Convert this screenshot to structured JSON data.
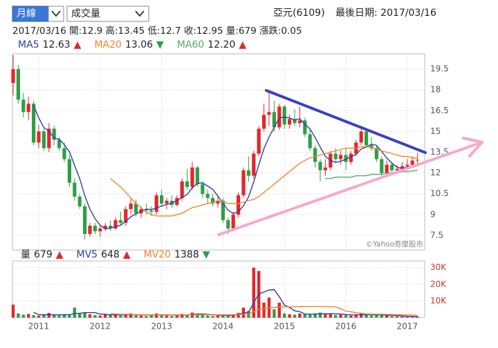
{
  "header": {
    "period": "月線",
    "indicator": "成交量",
    "stock": "亞元(6109)",
    "last_date": "最後日期: 2017/03/16",
    "info": "2017/03/16 開:12.9 高:13.45 低:12.7 收:12.95 量:679 漲跌:0.05"
  },
  "chart_data": {
    "type": "candlestick",
    "watermark": "©Yahoo奇摩股市",
    "categories": [
      null,
      null,
      null,
      null,
      null,
      "2011",
      null,
      null,
      null,
      null,
      null,
      null,
      null,
      null,
      null,
      null,
      null,
      "2012",
      null,
      null,
      null,
      null,
      null,
      null,
      null,
      null,
      null,
      null,
      null,
      "2013",
      null,
      null,
      null,
      null,
      null,
      null,
      null,
      null,
      null,
      null,
      null,
      "2014",
      null,
      null,
      null,
      null,
      null,
      null,
      null,
      null,
      null,
      null,
      null,
      "2015",
      null,
      null,
      null,
      null,
      null,
      null,
      null,
      null,
      null,
      null,
      null,
      "2016",
      null,
      null,
      null,
      null,
      null,
      null,
      null,
      null,
      null,
      null,
      null,
      "2017",
      null,
      null
    ],
    "open": [
      18.5,
      19.5,
      17.3,
      16.4,
      17,
      14.2,
      15,
      13.8,
      15.2,
      14.4,
      13.8,
      13,
      11.3,
      10.3,
      9.6,
      7.6,
      8.2,
      7.8,
      8,
      8.2,
      8,
      8.6,
      8.4,
      9.4,
      9.8,
      9.1,
      9.4,
      9.3,
      9.2,
      10.4,
      9.8,
      10,
      9.7,
      10.2,
      11.4,
      11,
      12.4,
      11.2,
      10.5,
      10.2,
      9.8,
      10,
      8.6,
      8,
      9,
      10.4,
      12.2,
      11.8,
      13.4,
      15.2,
      16.2,
      16.4,
      15.3,
      16.8,
      15.5,
      15.9,
      15.6,
      15.8,
      14.8,
      13.8,
      12.8,
      12.2,
      12.4,
      13.4,
      13,
      13.3,
      12.8,
      13.4,
      14.2,
      15,
      14,
      13.8,
      13,
      12,
      12.6,
      12.2,
      12.3,
      12.5,
      12.6,
      12.9
    ],
    "high": [
      20.5,
      19.8,
      17.8,
      17.5,
      17.2,
      15.5,
      15.2,
      15.6,
      15.4,
      14.6,
      14.2,
      13.3,
      11.6,
      10.5,
      9.8,
      8.4,
      8.4,
      8.2,
      8.4,
      8.6,
      8.8,
      9.2,
      9.6,
      10.2,
      10.1,
      9.6,
      9.8,
      9.6,
      10.6,
      10.8,
      10.2,
      10.4,
      10.4,
      11.6,
      12.3,
      12.8,
      12.5,
      11.4,
      10.8,
      10.5,
      10.3,
      10.2,
      8.8,
      9.2,
      10.6,
      12.4,
      13.2,
      13.6,
      15.4,
      17,
      18,
      17.2,
      17,
      16.9,
      16.2,
      16.6,
      16.8,
      16,
      15.2,
      14,
      13,
      13,
      13.6,
      13.8,
      13.6,
      13.8,
      13.6,
      14.4,
      15.4,
      15.2,
      14.6,
      14,
      13.2,
      12.9,
      12.8,
      12.6,
      12.8,
      13,
      13.2,
      13.45
    ],
    "low": [
      17.6,
      17,
      16,
      15.8,
      14,
      13.8,
      13.6,
      13.5,
      14,
      13.6,
      12.8,
      11,
      10,
      9.4,
      7.2,
      7.4,
      7.6,
      7.4,
      7.8,
      7.8,
      7.9,
      8.2,
      8.2,
      9,
      8.9,
      8.8,
      9,
      8.9,
      9,
      9.6,
      9.4,
      9.5,
      9.6,
      10,
      10.8,
      10.8,
      11,
      10.2,
      9.8,
      9.6,
      9.5,
      8.4,
      7.6,
      7.8,
      8.8,
      10.2,
      11.4,
      11.6,
      13.2,
      15,
      15.4,
      15,
      15.1,
      15.2,
      15.2,
      15.4,
      15.3,
      14.6,
      13.6,
      12.4,
      11.4,
      11.8,
      12.2,
      12.8,
      12.6,
      12.2,
      12.6,
      13.2,
      14,
      13.8,
      13.6,
      12.8,
      11.8,
      11.9,
      12,
      12,
      12.1,
      12.3,
      12.5,
      12.7
    ],
    "close": [
      19.5,
      17.3,
      16.4,
      17,
      14.2,
      15,
      13.8,
      15.2,
      14.4,
      13.8,
      13,
      11.3,
      10.3,
      9.6,
      7.6,
      8.2,
      7.8,
      8,
      8.2,
      8,
      8.6,
      8.4,
      9.4,
      9.8,
      9.1,
      9.4,
      9.3,
      9.2,
      10.4,
      9.8,
      10,
      9.7,
      10.2,
      11.4,
      11,
      12.4,
      11.2,
      10.5,
      10.2,
      9.8,
      10,
      8.6,
      8,
      9,
      10.4,
      12.2,
      11.8,
      13.4,
      15.2,
      16.2,
      16.4,
      15.3,
      16.8,
      15.5,
      15.9,
      15.6,
      15.8,
      14.8,
      13.8,
      12.8,
      12.2,
      12.4,
      13.4,
      13,
      13.3,
      12.8,
      13.4,
      14.2,
      15,
      14,
      13.8,
      13,
      12,
      12.6,
      12.2,
      12.3,
      12.5,
      12.6,
      12.9,
      12.95
    ],
    "up_color": "#e3262b",
    "down_color": "#2f9e44",
    "series": [
      {
        "name": "MA5",
        "color": "#2c3ea6",
        "label": "12.63",
        "trend": "▲",
        "values": [
          null,
          null,
          null,
          null,
          16.88,
          15.98,
          15.28,
          15.04,
          14.52,
          14.44,
          14.04,
          13.54,
          12.56,
          11.6,
          10.36,
          9.4,
          8.7,
          8.24,
          7.96,
          8.04,
          8.12,
          8.24,
          8.52,
          8.84,
          9.06,
          9.22,
          9.4,
          9.36,
          9.48,
          9.62,
          9.74,
          9.82,
          10.02,
          10.22,
          10.46,
          10.94,
          11.24,
          11.3,
          11.06,
          10.82,
          10.34,
          9.82,
          9.32,
          9.08,
          9.2,
          9.64,
          10.28,
          11.36,
          12.6,
          13.76,
          14.6,
          15.3,
          15.98,
          16.04,
          15.98,
          15.82,
          15.92,
          15.52,
          15.18,
          14.56,
          13.88,
          13.2,
          12.92,
          12.76,
          12.86,
          12.98,
          13.18,
          13.34,
          13.74,
          13.88,
          14.08,
          14,
          13.56,
          13.08,
          12.72,
          12.42,
          12.32,
          12.44,
          12.5,
          12.63
        ]
      },
      {
        "name": "MA20",
        "color": "#f0872a",
        "label": "13.06",
        "trend": "▼",
        "values": [
          null,
          null,
          null,
          null,
          null,
          null,
          null,
          null,
          null,
          null,
          null,
          null,
          null,
          null,
          null,
          null,
          null,
          null,
          null,
          11.6,
          11.3,
          11.0,
          10.6,
          10.2,
          9.8,
          9.5,
          9.2,
          9.0,
          8.9,
          8.9,
          8.9,
          8.9,
          9.0,
          9.1,
          9.3,
          9.5,
          9.6,
          9.7,
          9.8,
          9.9,
          10.0,
          9.9,
          9.8,
          9.8,
          9.8,
          9.9,
          10.0,
          10.1,
          10.3,
          10.6,
          10.9,
          11.2,
          11.5,
          11.8,
          12.1,
          12.4,
          12.7,
          12.9,
          13.1,
          13.2,
          13.3,
          13.4,
          13.5,
          13.6,
          13.7,
          13.8,
          13.8,
          13.8,
          13.9,
          13.9,
          13.8,
          13.7,
          13.6,
          13.5,
          13.4,
          13.3,
          13.2,
          13.2,
          13.1,
          13.06
        ]
      },
      {
        "name": "MA60",
        "color": "#5aa66b",
        "label": "12.20",
        "trend": "▲",
        "values": [
          null,
          null,
          null,
          null,
          null,
          null,
          null,
          null,
          null,
          null,
          null,
          null,
          null,
          null,
          null,
          null,
          null,
          null,
          null,
          null,
          null,
          null,
          null,
          null,
          null,
          null,
          null,
          null,
          null,
          null,
          null,
          null,
          null,
          null,
          null,
          null,
          null,
          null,
          null,
          null,
          null,
          null,
          null,
          null,
          null,
          null,
          null,
          null,
          null,
          null,
          null,
          null,
          null,
          null,
          null,
          null,
          null,
          null,
          null,
          null,
          null,
          11.6,
          11.6,
          11.7,
          11.7,
          11.7,
          11.7,
          11.8,
          11.8,
          11.8,
          11.9,
          11.9,
          11.9,
          12.0,
          12.0,
          12.0,
          12.1,
          12.1,
          12.15,
          12.2
        ]
      }
    ],
    "ylim": [
      6.45,
      20.6
    ],
    "yticks": [
      7.5,
      9.0,
      10.5,
      12.0,
      13.5,
      15.0,
      16.5,
      18.0,
      19.5
    ],
    "volume": {
      "name": "量",
      "label": "679",
      "trend": "▲",
      "values": [
        7800,
        2500,
        1800,
        2200,
        1500,
        1200,
        1600,
        2800,
        1500,
        1200,
        1800,
        1500,
        6000,
        2500,
        3200,
        2000,
        1500,
        1200,
        2200,
        1500,
        2000,
        1200,
        1800,
        2500,
        1500,
        1200,
        1000,
        1500,
        2500,
        1500,
        1200,
        1000,
        1500,
        2200,
        1800,
        3000,
        2200,
        1500,
        1200,
        1000,
        1200,
        1800,
        1500,
        1800,
        2800,
        6000,
        4000,
        30000,
        28000,
        9000,
        12000,
        5000,
        9000,
        2500,
        2000,
        1800,
        2500,
        2000,
        1800,
        2500,
        3000,
        2000,
        2500,
        1500,
        1800,
        1500,
        1200,
        2000,
        2500,
        1500,
        1200,
        1500,
        1800,
        1200,
        800,
        700,
        600,
        650,
        600,
        679
      ],
      "series": [
        {
          "name": "MV5",
          "color": "#2c3ea6",
          "label": "648",
          "trend": "▲",
          "values": [
            null,
            null,
            null,
            null,
            3160,
            1840,
            1660,
            1860,
            1720,
            1660,
            1780,
            1760,
            2400,
            2600,
            3000,
            3040,
            3040,
            2080,
            2020,
            1680,
            1680,
            1620,
            1740,
            1800,
            1800,
            1640,
            1600,
            1540,
            1540,
            1640,
            1640,
            1540,
            1540,
            1480,
            1540,
            1900,
            2140,
            2140,
            1940,
            1780,
            1420,
            1340,
            1340,
            1460,
            1820,
            2780,
            3220,
            8920,
            14160,
            15400,
            16600,
            16800,
            12600,
            7500,
            6100,
            4060,
            3560,
            2160,
            2020,
            2120,
            2360,
            2260,
            2360,
            2300,
            2160,
            1860,
            1700,
            1600,
            1800,
            1740,
            1680,
            1740,
            1700,
            1440,
            1300,
            1200,
            1020,
            790,
            710,
            648
          ]
        },
        {
          "name": "MV20",
          "color": "#f0872a",
          "label": "1388",
          "trend": "▼",
          "values": [
            null,
            null,
            null,
            null,
            null,
            null,
            null,
            null,
            null,
            null,
            null,
            null,
            null,
            null,
            null,
            null,
            null,
            null,
            null,
            2400,
            2200,
            2050,
            2050,
            1950,
            1800,
            1750,
            1700,
            1650,
            1650,
            1650,
            1650,
            1600,
            1600,
            1650,
            1650,
            1700,
            1700,
            1700,
            1700,
            1700,
            1700,
            1700,
            1700,
            1750,
            1800,
            2000,
            2150,
            3550,
            4850,
            5250,
            5800,
            6000,
            6400,
            6450,
            6500,
            6600,
            6650,
            6650,
            6650,
            6700,
            6750,
            6550,
            6600,
            6500,
            5300,
            3900,
            3500,
            2900,
            2600,
            2200,
            2100,
            2050,
            2050,
            1950,
            1850,
            1800,
            1700,
            1650,
            1550,
            1388
          ]
        }
      ],
      "ylim": [
        0,
        34000
      ],
      "yticks": [
        {
          "value": 10000,
          "label": "10K"
        },
        {
          "value": 20000,
          "label": "20K"
        },
        {
          "value": 30000,
          "label": "30K"
        }
      ]
    },
    "grid": true
  }
}
